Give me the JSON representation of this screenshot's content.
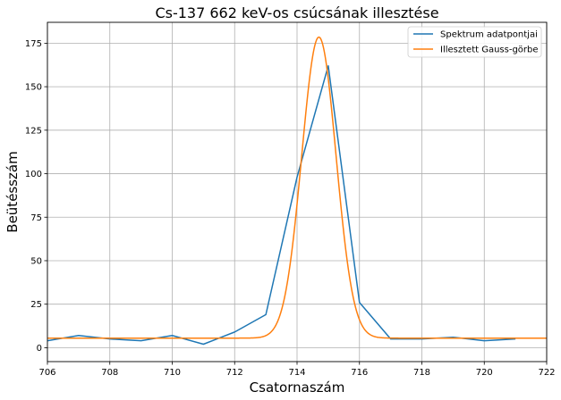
{
  "chart_data": {
    "type": "line",
    "title": "Cs-137 662 keV-os csúcsának illesztése",
    "xlabel": "Csatornaszám",
    "ylabel": "Beütésszám",
    "xlim": [
      706,
      722
    ],
    "ylim": [
      -8,
      187
    ],
    "xticks": [
      706,
      708,
      710,
      712,
      714,
      716,
      718,
      720,
      722
    ],
    "yticks": [
      0,
      25,
      50,
      75,
      100,
      125,
      150,
      175
    ],
    "grid": true,
    "legend_position": "top-right",
    "series": [
      {
        "name": "Spektrum adatpontjai",
        "color": "#1f77b4",
        "kind": "data",
        "x": [
          706,
          707,
          708,
          709,
          710,
          711,
          712,
          713,
          714,
          715,
          716,
          717,
          718,
          719,
          720,
          721
        ],
        "y": [
          4,
          7,
          5,
          4,
          7,
          2,
          9,
          19,
          98,
          162,
          26,
          5,
          5,
          6,
          4,
          5
        ]
      },
      {
        "name": "Illesztett Gauss-görbe",
        "color": "#ff7f0e",
        "kind": "gaussian",
        "amplitude": 173,
        "center": 714.7,
        "sigma": 0.55,
        "offset": 5.5
      }
    ]
  }
}
